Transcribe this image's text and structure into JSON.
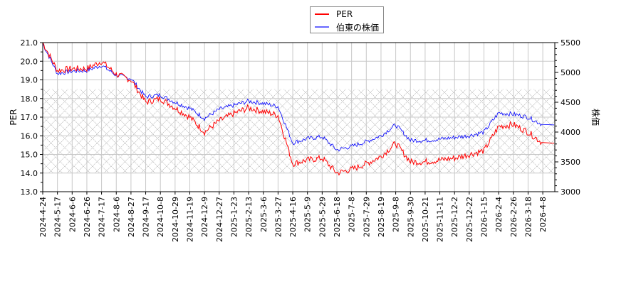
{
  "chart_data": {
    "type": "line",
    "title": "",
    "legend": {
      "position": "top-center",
      "entries": [
        {
          "label": "PER",
          "color": "#ff0000"
        },
        {
          "label": "伯東の株価",
          "color": "#0000ff"
        }
      ]
    },
    "xlabel": "",
    "ylabel_left": "PER",
    "ylabel_right": "株価",
    "ylim_left": [
      13.0,
      21.0
    ],
    "ylim_right": [
      3000,
      5500
    ],
    "yticks_left": [
      "13.0",
      "14.0",
      "15.0",
      "16.0",
      "17.0",
      "18.0",
      "19.0",
      "20.0",
      "21.0"
    ],
    "yticks_right": [
      "3000",
      "3500",
      "4000",
      "4500",
      "5000",
      "5500"
    ],
    "x_tick_labels": [
      "2024-4-24",
      "2024-5-17",
      "2024-6-6",
      "2024-6-26",
      "2024-7-17",
      "2024-8-6",
      "2024-8-27",
      "2024-9-17",
      "2024-10-8",
      "2024-10-29",
      "2024-11-19",
      "2024-12-9",
      "2024-12-27",
      "2025-1-23",
      "2025-2-13",
      "2025-3-6",
      "2025-3-27",
      "2025-4-16",
      "2025-5-9",
      "2025-5-29",
      "2025-6-18",
      "2025-7-8",
      "2025-7-29",
      "2025-8-19",
      "2025-9-8",
      "2025-9-30",
      "2025-10-21",
      "2025-11-11",
      "2025-12-2",
      "2025-12-22",
      "2026-1-15",
      "2026-2-4",
      "2026-2-26",
      "2026-3-18",
      "2026-4-8"
    ],
    "grid": true,
    "shaded_band": {
      "pattern": "crosshatch",
      "per_range": [
        14.0,
        18.5
      ]
    },
    "categories": [
      "2024-4-24",
      "2024-5-17",
      "2024-6-6",
      "2024-6-26",
      "2024-7-17",
      "2024-8-6",
      "2024-8-27",
      "2024-9-17",
      "2024-10-8",
      "2024-10-29",
      "2024-11-19",
      "2024-12-9",
      "2024-12-27",
      "2025-1-23",
      "2025-2-13",
      "2025-3-6",
      "2025-3-27",
      "2025-4-16",
      "2025-5-9",
      "2025-5-29",
      "2025-6-18",
      "2025-7-8",
      "2025-7-29",
      "2025-8-19",
      "2025-9-8",
      "2025-9-30",
      "2025-10-21",
      "2025-11-11",
      "2025-12-2",
      "2025-12-22",
      "2026-1-15",
      "2026-2-4",
      "2026-2-26",
      "2026-3-18",
      "2026-4-8"
    ],
    "series": [
      {
        "name": "PER",
        "axis": "left",
        "color": "#ff0000",
        "values": [
          21.0,
          19.5,
          19.6,
          19.6,
          20.0,
          19.3,
          19.0,
          17.8,
          18.0,
          17.5,
          17.0,
          16.2,
          16.8,
          17.2,
          17.5,
          17.3,
          17.1,
          14.5,
          14.7,
          14.8,
          14.0,
          14.2,
          14.5,
          14.9,
          15.6,
          14.6,
          14.6,
          14.7,
          14.8,
          15.0,
          15.2,
          16.5,
          16.6,
          16.2,
          15.6
        ]
      },
      {
        "name": "伯東の株価",
        "axis": "right",
        "color": "#0000ff",
        "values": [
          5480,
          4980,
          5020,
          5030,
          5120,
          4950,
          4900,
          4590,
          4620,
          4500,
          4400,
          4230,
          4380,
          4450,
          4520,
          4480,
          4430,
          3820,
          3890,
          3920,
          3700,
          3760,
          3840,
          3940,
          4120,
          3860,
          3860,
          3880,
          3910,
          3940,
          4000,
          4320,
          4300,
          4250,
          4120
        ]
      }
    ]
  }
}
